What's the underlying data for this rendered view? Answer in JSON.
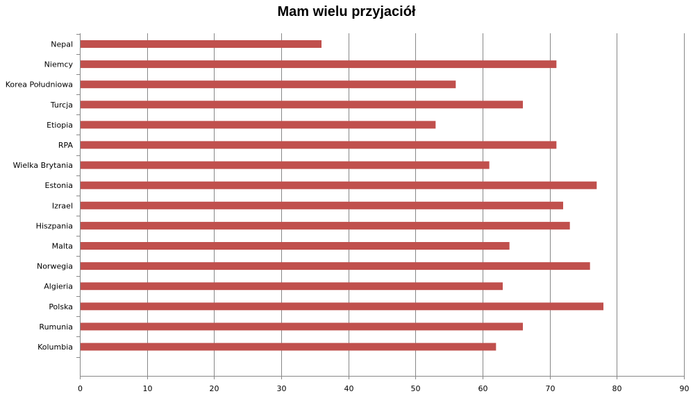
{
  "chart_data": {
    "type": "bar",
    "orientation": "horizontal",
    "title": "Mam wielu przyjaciół",
    "xlabel": "",
    "ylabel": "",
    "xlim": [
      0,
      90
    ],
    "x_ticks": [
      0,
      10,
      20,
      30,
      40,
      50,
      60,
      70,
      80,
      90
    ],
    "grid": "vertical",
    "legend": "none",
    "bar_color": "#c0504d",
    "categories": [
      "Nepal",
      "Niemcy",
      "Korea Południowa",
      "Turcja",
      "Etiopia",
      "RPA",
      "Wielka Brytania",
      "Estonia",
      "Izrael",
      "Hiszpania",
      "Malta",
      "Norwegia",
      "Algieria",
      "Polska",
      "Rumunia",
      "Kolumbia"
    ],
    "values": [
      36,
      71,
      56,
      66,
      53,
      71,
      61,
      77,
      72,
      73,
      64,
      76,
      63,
      78,
      66,
      62
    ]
  }
}
